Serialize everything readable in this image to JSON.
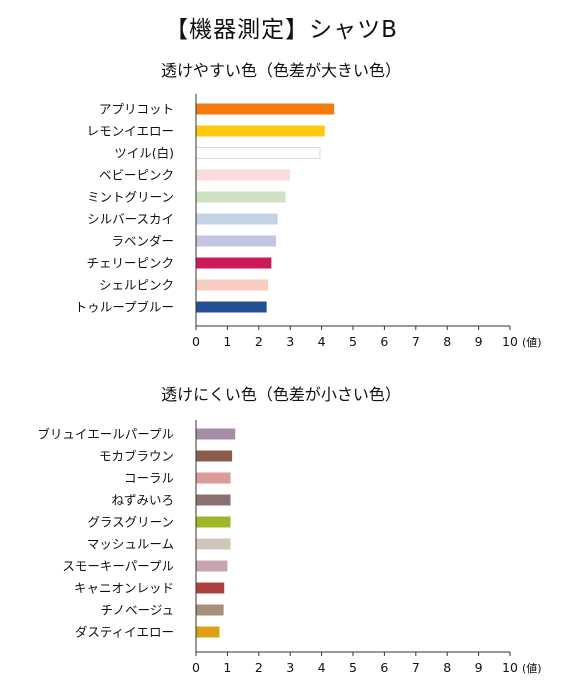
{
  "title": "【機器測定】シャツB",
  "chart_data": [
    {
      "type": "bar",
      "orientation": "horizontal",
      "title": "透けやすい色（色差が大きい色）",
      "unit_label": "(値)",
      "xlim": [
        0,
        10
      ],
      "ticks": [
        0,
        1,
        2,
        3,
        4,
        5,
        6,
        7,
        8,
        9,
        10
      ],
      "grid": false,
      "categories": [
        "アプリコット",
        "レモンイエロー",
        "ツイル(白)",
        "ベビーピンク",
        "ミントグリーン",
        "シルバースカイ",
        "ラベンダー",
        "チェリーピンク",
        "シェルピンク",
        "トゥループブルー"
      ],
      "values": [
        4.4,
        4.1,
        3.95,
        3.0,
        2.85,
        2.6,
        2.55,
        2.4,
        2.3,
        2.25
      ],
      "colors": [
        "#F47A0E",
        "#FFC90E",
        "#FFFFFF",
        "#FADADD",
        "#CFE2C3",
        "#C3D3E3",
        "#C4C4E4",
        "#CC1A58",
        "#F8CEC2",
        "#244F92"
      ],
      "outlines": [
        null,
        null,
        "#D5DED5",
        null,
        null,
        null,
        null,
        null,
        null,
        null
      ]
    },
    {
      "type": "bar",
      "orientation": "horizontal",
      "title": "透けにくい色（色差が小さい色）",
      "unit_label": "(値)",
      "xlim": [
        0,
        10
      ],
      "ticks": [
        0,
        1,
        2,
        3,
        4,
        5,
        6,
        7,
        8,
        9,
        10
      ],
      "grid": false,
      "categories": [
        "ブリュイエールパープル",
        "モカブラウン",
        "コーラル",
        "ねずみいろ",
        "グラスグリーン",
        "マッシュルーム",
        "スモーキーパープル",
        "キャニオンレッド",
        "チノベージュ",
        "ダスティイエロー"
      ],
      "values": [
        1.25,
        1.15,
        1.1,
        1.1,
        1.1,
        1.1,
        1.0,
        0.9,
        0.88,
        0.75
      ],
      "colors": [
        "#A38EA6",
        "#8A5C4E",
        "#DB9B98",
        "#8A7272",
        "#A0B629",
        "#D2C5BA",
        "#C7A4B2",
        "#AD4141",
        "#A88F7A",
        "#DCA213"
      ],
      "outlines": [
        null,
        null,
        null,
        null,
        null,
        null,
        null,
        null,
        null,
        null
      ]
    }
  ]
}
